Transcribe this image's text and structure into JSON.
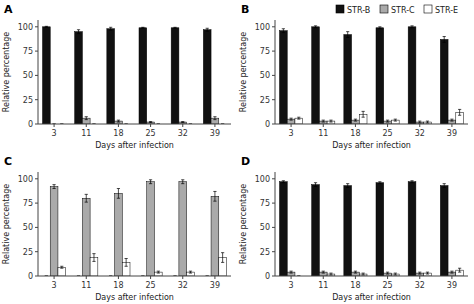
{
  "chart_data": [
    {
      "type": "bar",
      "title": "A",
      "xlabel": "Days after infection",
      "ylabel": "Relative percentage",
      "categories": [
        "3",
        "11",
        "18",
        "25",
        "32",
        "39"
      ],
      "series": [
        {
          "color": "#111111",
          "values": [
            100,
            95,
            98,
            99,
            99,
            97
          ],
          "errors": [
            0.5,
            2,
            1.5,
            0.5,
            0.5,
            1.5
          ]
        },
        {
          "color": "#aaaaaa",
          "values": [
            0,
            6,
            3,
            2,
            2,
            6
          ],
          "errors": [
            0,
            1.5,
            1,
            0.5,
            0.5,
            1.5
          ]
        },
        {
          "color": "#ffffff",
          "values": [
            0,
            0,
            0,
            0,
            0,
            0
          ],
          "errors": [
            0,
            0,
            0,
            0,
            0,
            0
          ]
        }
      ],
      "ylim": [
        0,
        107
      ],
      "yticks": [
        0,
        25,
        50,
        75,
        100
      ]
    },
    {
      "type": "bar",
      "title": "B",
      "xlabel": "Days after infection",
      "ylabel": "Relative percentage",
      "categories": [
        "3",
        "11",
        "18",
        "25",
        "32",
        "39"
      ],
      "series": [
        {
          "name": "STR-B",
          "color": "#111111",
          "values": [
            96,
            100,
            92,
            99,
            100,
            87
          ],
          "errors": [
            2,
            1,
            3,
            1,
            1,
            3
          ]
        },
        {
          "name": "STR-C",
          "color": "#aaaaaa",
          "values": [
            5,
            3,
            4,
            3,
            2,
            4
          ],
          "errors": [
            1,
            1,
            1,
            1,
            1,
            1
          ]
        },
        {
          "name": "STR-E",
          "color": "#ffffff",
          "values": [
            6,
            3,
            10,
            4,
            2,
            12
          ],
          "errors": [
            1,
            1,
            3,
            1,
            1,
            3
          ]
        }
      ],
      "ylim": [
        0,
        107
      ],
      "yticks": [
        0,
        25,
        50,
        75,
        100
      ],
      "legend": "top"
    },
    {
      "type": "bar",
      "title": "C",
      "xlabel": "Days after infection",
      "ylabel": "Relative percentage",
      "categories": [
        "3",
        "11",
        "18",
        "25",
        "32",
        "39"
      ],
      "series": [
        {
          "color": "#111111",
          "values": [
            0,
            0,
            0,
            0,
            0,
            0
          ],
          "errors": [
            0,
            0,
            0,
            0,
            0,
            0
          ]
        },
        {
          "color": "#aaaaaa",
          "values": [
            92,
            80,
            85,
            97,
            97,
            82
          ],
          "errors": [
            2,
            4,
            5,
            2,
            2,
            5
          ]
        },
        {
          "color": "#ffffff",
          "values": [
            9,
            19,
            14,
            4,
            4,
            19
          ],
          "errors": [
            1,
            4,
            4,
            1,
            1,
            5
          ]
        }
      ],
      "ylim": [
        0,
        107
      ],
      "yticks": [
        0,
        25,
        50,
        75,
        100
      ]
    },
    {
      "type": "bar",
      "title": "D",
      "xlabel": "Days after infection",
      "ylabel": "Relative percentage",
      "categories": [
        "3",
        "11",
        "18",
        "25",
        "32",
        "39"
      ],
      "series": [
        {
          "color": "#111111",
          "values": [
            97,
            94,
            93,
            96,
            97,
            93
          ],
          "errors": [
            1,
            2,
            2,
            1,
            1,
            2
          ]
        },
        {
          "color": "#aaaaaa",
          "values": [
            4,
            4,
            4,
            3,
            3,
            4
          ],
          "errors": [
            1,
            1,
            1,
            1,
            1,
            1
          ]
        },
        {
          "color": "#ffffff",
          "values": [
            0,
            2,
            2,
            2,
            3,
            6
          ],
          "errors": [
            0,
            1,
            1,
            1,
            1,
            2
          ]
        }
      ],
      "ylim": [
        0,
        107
      ],
      "yticks": [
        0,
        25,
        50,
        75,
        100
      ]
    }
  ]
}
